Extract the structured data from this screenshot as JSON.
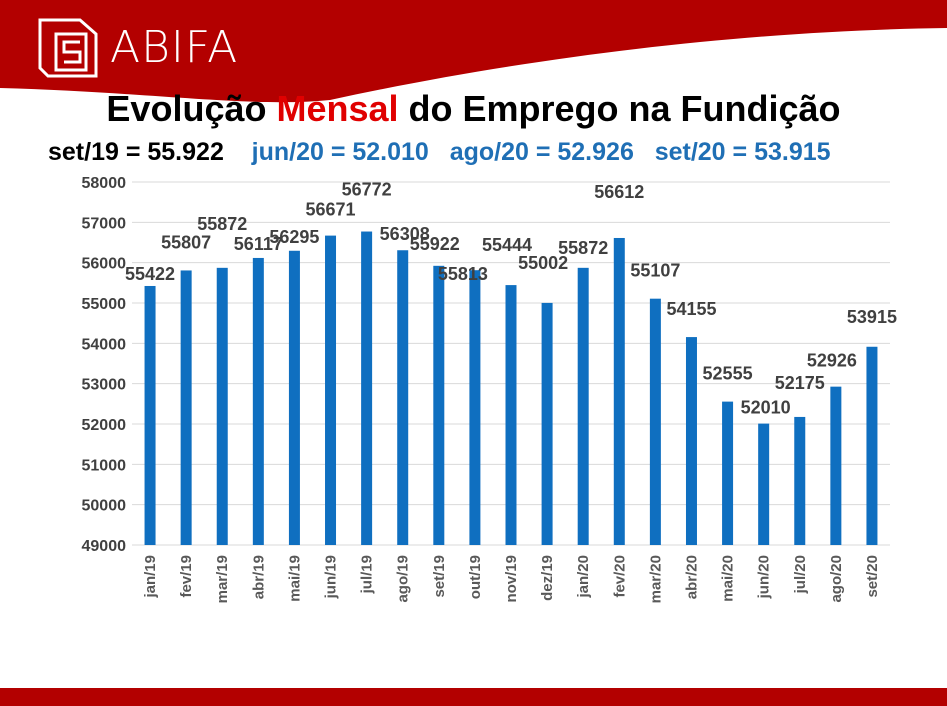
{
  "header": {
    "brand": "ABIFA",
    "logo_icon": "abifa-logo-icon",
    "brand_color": "#b30000"
  },
  "title": {
    "part1": "Evolução ",
    "highlight": "Mensal",
    "part2": " do Emprego na Fundição"
  },
  "subtitle": {
    "item1": "set/19 = 55.922",
    "item2": "jun/20 = 52.010",
    "item3": "ago/20 = 52.926",
    "item4": "set/20 = 53.915"
  },
  "chart_data": {
    "type": "bar",
    "categories": [
      "jan/19",
      "fev/19",
      "mar/19",
      "abr/19",
      "mai/19",
      "jun/19",
      "jul/19",
      "ago/19",
      "set/19",
      "out/19",
      "nov/19",
      "dez/19",
      "jan/20",
      "fev/20",
      "mar/20",
      "abr/20",
      "mai/20",
      "jun/20",
      "jul/20",
      "ago/20",
      "set/20"
    ],
    "values": [
      55422,
      55807,
      55872,
      56117,
      56295,
      56671,
      56772,
      56308,
      55922,
      55813,
      55444,
      55002,
      55872,
      56612,
      55107,
      54155,
      52555,
      52010,
      52175,
      52926,
      53915
    ],
    "ylim": [
      49000,
      58000
    ],
    "yticks": [
      49000,
      50000,
      51000,
      52000,
      53000,
      54000,
      55000,
      56000,
      57000,
      58000
    ],
    "grid": true,
    "bar_color": "#0f6fc0",
    "xlabel": "",
    "ylabel": ""
  }
}
